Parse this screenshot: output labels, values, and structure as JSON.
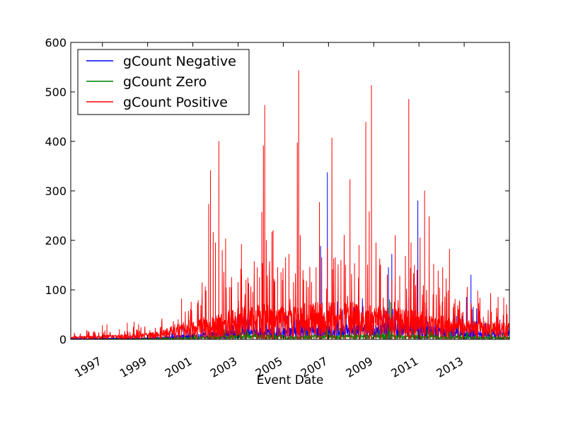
{
  "chart_data": {
    "type": "line",
    "xlabel": "Event Date",
    "ylabel": "",
    "title": "",
    "xlim": [
      1995.6,
      2015.0
    ],
    "ylim": [
      0,
      600
    ],
    "x_ticks": [
      1997,
      1999,
      2001,
      2003,
      2005,
      2007,
      2009,
      2011,
      2013
    ],
    "x_tick_labels": [
      "1997",
      "1999",
      "2001",
      "2003",
      "2005",
      "2007",
      "2009",
      "2011",
      "2013"
    ],
    "y_ticks": [
      0,
      100,
      200,
      300,
      400,
      500,
      600
    ],
    "y_tick_labels": [
      "0",
      "100",
      "200",
      "300",
      "400",
      "500",
      "600"
    ],
    "grid": false,
    "legend_position": "top-left",
    "series": [
      {
        "name": "gCount Negative",
        "color": "#0000ff",
        "baseline_profile": [
          [
            1995.6,
            1
          ],
          [
            1999.0,
            2
          ],
          [
            2000.0,
            4
          ],
          [
            2001.5,
            8
          ],
          [
            2003.0,
            12
          ],
          [
            2005.0,
            14
          ],
          [
            2007.0,
            16
          ],
          [
            2009.0,
            20
          ],
          [
            2011.0,
            18
          ],
          [
            2013.0,
            12
          ],
          [
            2015.0,
            10
          ]
        ],
        "peaks": [
          [
            2006.95,
            337
          ],
          [
            2010.95,
            280
          ],
          [
            2009.8,
            172
          ],
          [
            2009.65,
            145
          ],
          [
            2013.3,
            130
          ],
          [
            2006.65,
            188
          ],
          [
            2003.3,
            75
          ],
          [
            2012.2,
            97
          ],
          [
            2013.1,
            85
          ],
          [
            2013.55,
            62
          ],
          [
            2010.55,
            84
          ],
          [
            2013.4,
            65
          ],
          [
            2014.1,
            28
          ],
          [
            2009.55,
            45
          ],
          [
            2011.35,
            60
          ],
          [
            2012.55,
            48
          ],
          [
            2000.6,
            25
          ],
          [
            2001.75,
            28
          ],
          [
            2004.6,
            35
          ]
        ]
      },
      {
        "name": "gCount Zero",
        "color": "#008000",
        "baseline_profile": [
          [
            1995.6,
            0
          ],
          [
            1999.5,
            1
          ],
          [
            2001.0,
            3
          ],
          [
            2003.0,
            6
          ],
          [
            2005.0,
            5
          ],
          [
            2007.0,
            5
          ],
          [
            2009.0,
            6
          ],
          [
            2011.0,
            5
          ],
          [
            2013.0,
            4
          ],
          [
            2015.0,
            3
          ]
        ],
        "peaks": [
          [
            2003.0,
            35
          ],
          [
            2003.1,
            40
          ],
          [
            2004.75,
            30
          ],
          [
            2009.7,
            80
          ],
          [
            2009.75,
            75
          ],
          [
            2008.2,
            20
          ],
          [
            2006.1,
            15
          ],
          [
            2014.15,
            30
          ],
          [
            2001.1,
            18
          ],
          [
            2007.5,
            22
          ],
          [
            2010.4,
            25
          ],
          [
            2012.4,
            18
          ]
        ]
      },
      {
        "name": "gCount Positive",
        "color": "#ff0000",
        "baseline_profile": [
          [
            1995.6,
            3
          ],
          [
            1997.0,
            5
          ],
          [
            1998.5,
            6
          ],
          [
            1999.5,
            10
          ],
          [
            2000.5,
            20
          ],
          [
            2001.0,
            25
          ],
          [
            2002.0,
            28
          ],
          [
            2003.0,
            40
          ],
          [
            2004.0,
            42
          ],
          [
            2005.0,
            40
          ],
          [
            2006.0,
            44
          ],
          [
            2007.0,
            45
          ],
          [
            2008.0,
            45
          ],
          [
            2009.0,
            40
          ],
          [
            2010.0,
            38
          ],
          [
            2011.0,
            34
          ],
          [
            2012.0,
            28
          ],
          [
            2013.0,
            24
          ],
          [
            2014.0,
            20
          ],
          [
            2015.0,
            20
          ]
        ],
        "peaks": [
          [
            1996.3,
            18
          ],
          [
            1996.6,
            14
          ],
          [
            1997.0,
            28
          ],
          [
            1997.2,
            30
          ],
          [
            1997.75,
            20
          ],
          [
            1998.1,
            33
          ],
          [
            1998.4,
            35
          ],
          [
            1998.6,
            30
          ],
          [
            1999.1,
            18
          ],
          [
            1999.6,
            25
          ],
          [
            2000.2,
            30
          ],
          [
            2000.35,
            40
          ],
          [
            2000.5,
            82
          ],
          [
            2000.9,
            60
          ],
          [
            2001.2,
            50
          ],
          [
            2001.4,
            82
          ],
          [
            2001.55,
            106
          ],
          [
            2001.7,
            273
          ],
          [
            2001.78,
            341
          ],
          [
            2001.9,
            216
          ],
          [
            2002.0,
            195
          ],
          [
            2002.15,
            400
          ],
          [
            2002.3,
            180
          ],
          [
            2002.45,
            203
          ],
          [
            2002.62,
            105
          ],
          [
            2002.75,
            58
          ],
          [
            2003.0,
            115
          ],
          [
            2003.15,
            192
          ],
          [
            2003.35,
            120
          ],
          [
            2003.65,
            95
          ],
          [
            2003.85,
            145
          ],
          [
            2003.95,
            125
          ],
          [
            2004.05,
            257
          ],
          [
            2004.12,
            391
          ],
          [
            2004.18,
            473
          ],
          [
            2004.25,
            200
          ],
          [
            2004.4,
            120
          ],
          [
            2004.5,
            217
          ],
          [
            2004.55,
            220
          ],
          [
            2004.75,
            145
          ],
          [
            2004.9,
            135
          ],
          [
            2005.1,
            165
          ],
          [
            2005.25,
            172
          ],
          [
            2005.45,
            115
          ],
          [
            2005.62,
            397
          ],
          [
            2005.68,
            543
          ],
          [
            2005.75,
            210
          ],
          [
            2005.9,
            120
          ],
          [
            2006.1,
            105
          ],
          [
            2006.25,
            115
          ],
          [
            2006.45,
            145
          ],
          [
            2006.6,
            277
          ],
          [
            2006.7,
            165
          ],
          [
            2006.95,
            185
          ],
          [
            2007.15,
            407
          ],
          [
            2007.3,
            165
          ],
          [
            2007.55,
            160
          ],
          [
            2007.75,
            150
          ],
          [
            2007.95,
            323
          ],
          [
            2008.15,
            153
          ],
          [
            2008.35,
            190
          ],
          [
            2008.65,
            439
          ],
          [
            2008.8,
            258
          ],
          [
            2008.9,
            513
          ],
          [
            2009.1,
            195
          ],
          [
            2009.3,
            150
          ],
          [
            2009.6,
            130
          ],
          [
            2009.8,
            120
          ],
          [
            2009.95,
            210
          ],
          [
            2010.15,
            128
          ],
          [
            2010.4,
            168
          ],
          [
            2010.55,
            485
          ],
          [
            2010.65,
            195
          ],
          [
            2010.8,
            150
          ],
          [
            2011.05,
            205
          ],
          [
            2011.25,
            300
          ],
          [
            2011.45,
            248
          ],
          [
            2011.65,
            152
          ],
          [
            2011.85,
            138
          ],
          [
            2012.05,
            145
          ],
          [
            2012.2,
            122
          ],
          [
            2012.35,
            182
          ],
          [
            2012.55,
            72
          ],
          [
            2012.75,
            60
          ],
          [
            2012.95,
            55
          ],
          [
            2013.35,
            60
          ],
          [
            2013.6,
            98
          ],
          [
            2013.85,
            45
          ],
          [
            2014.2,
            55
          ],
          [
            2014.5,
            85
          ],
          [
            2014.75,
            84
          ],
          [
            2014.9,
            50
          ]
        ]
      }
    ]
  }
}
